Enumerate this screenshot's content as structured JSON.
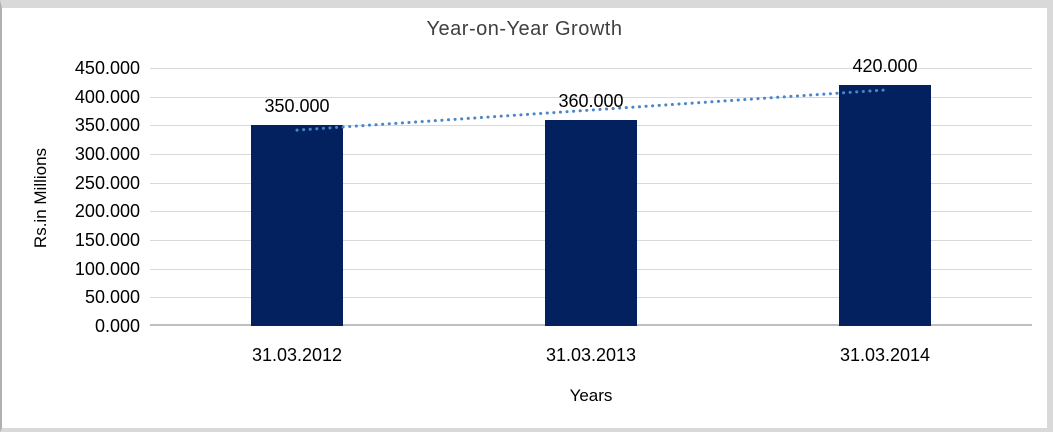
{
  "chart_data": {
    "type": "bar",
    "title": "Year-on-Year Growth",
    "categories": [
      "31.03.2012",
      "31.03.2013",
      "31.03.2014"
    ],
    "values": [
      350,
      360,
      420
    ],
    "value_labels": [
      "350.000",
      "360.000",
      "420.000"
    ],
    "xlabel": "Years",
    "ylabel": "Rs.in Millions",
    "ylim": [
      0,
      450
    ],
    "ytick_step": 50,
    "ytick_labels": [
      "0.000",
      "50.000",
      "100.000",
      "150.000",
      "200.000",
      "250.000",
      "300.000",
      "350.000",
      "400.000",
      "450.000"
    ],
    "grid": true,
    "legend_position": "none",
    "trendline": {
      "type": "linear",
      "style": "dotted"
    },
    "colors": {
      "bar": "#03215f",
      "trendline": "#4a86c8",
      "gridline": "#d9d9d9",
      "axis_line": "#bfbfbf",
      "title": "#3f3f3f",
      "labels": "#000000"
    }
  }
}
